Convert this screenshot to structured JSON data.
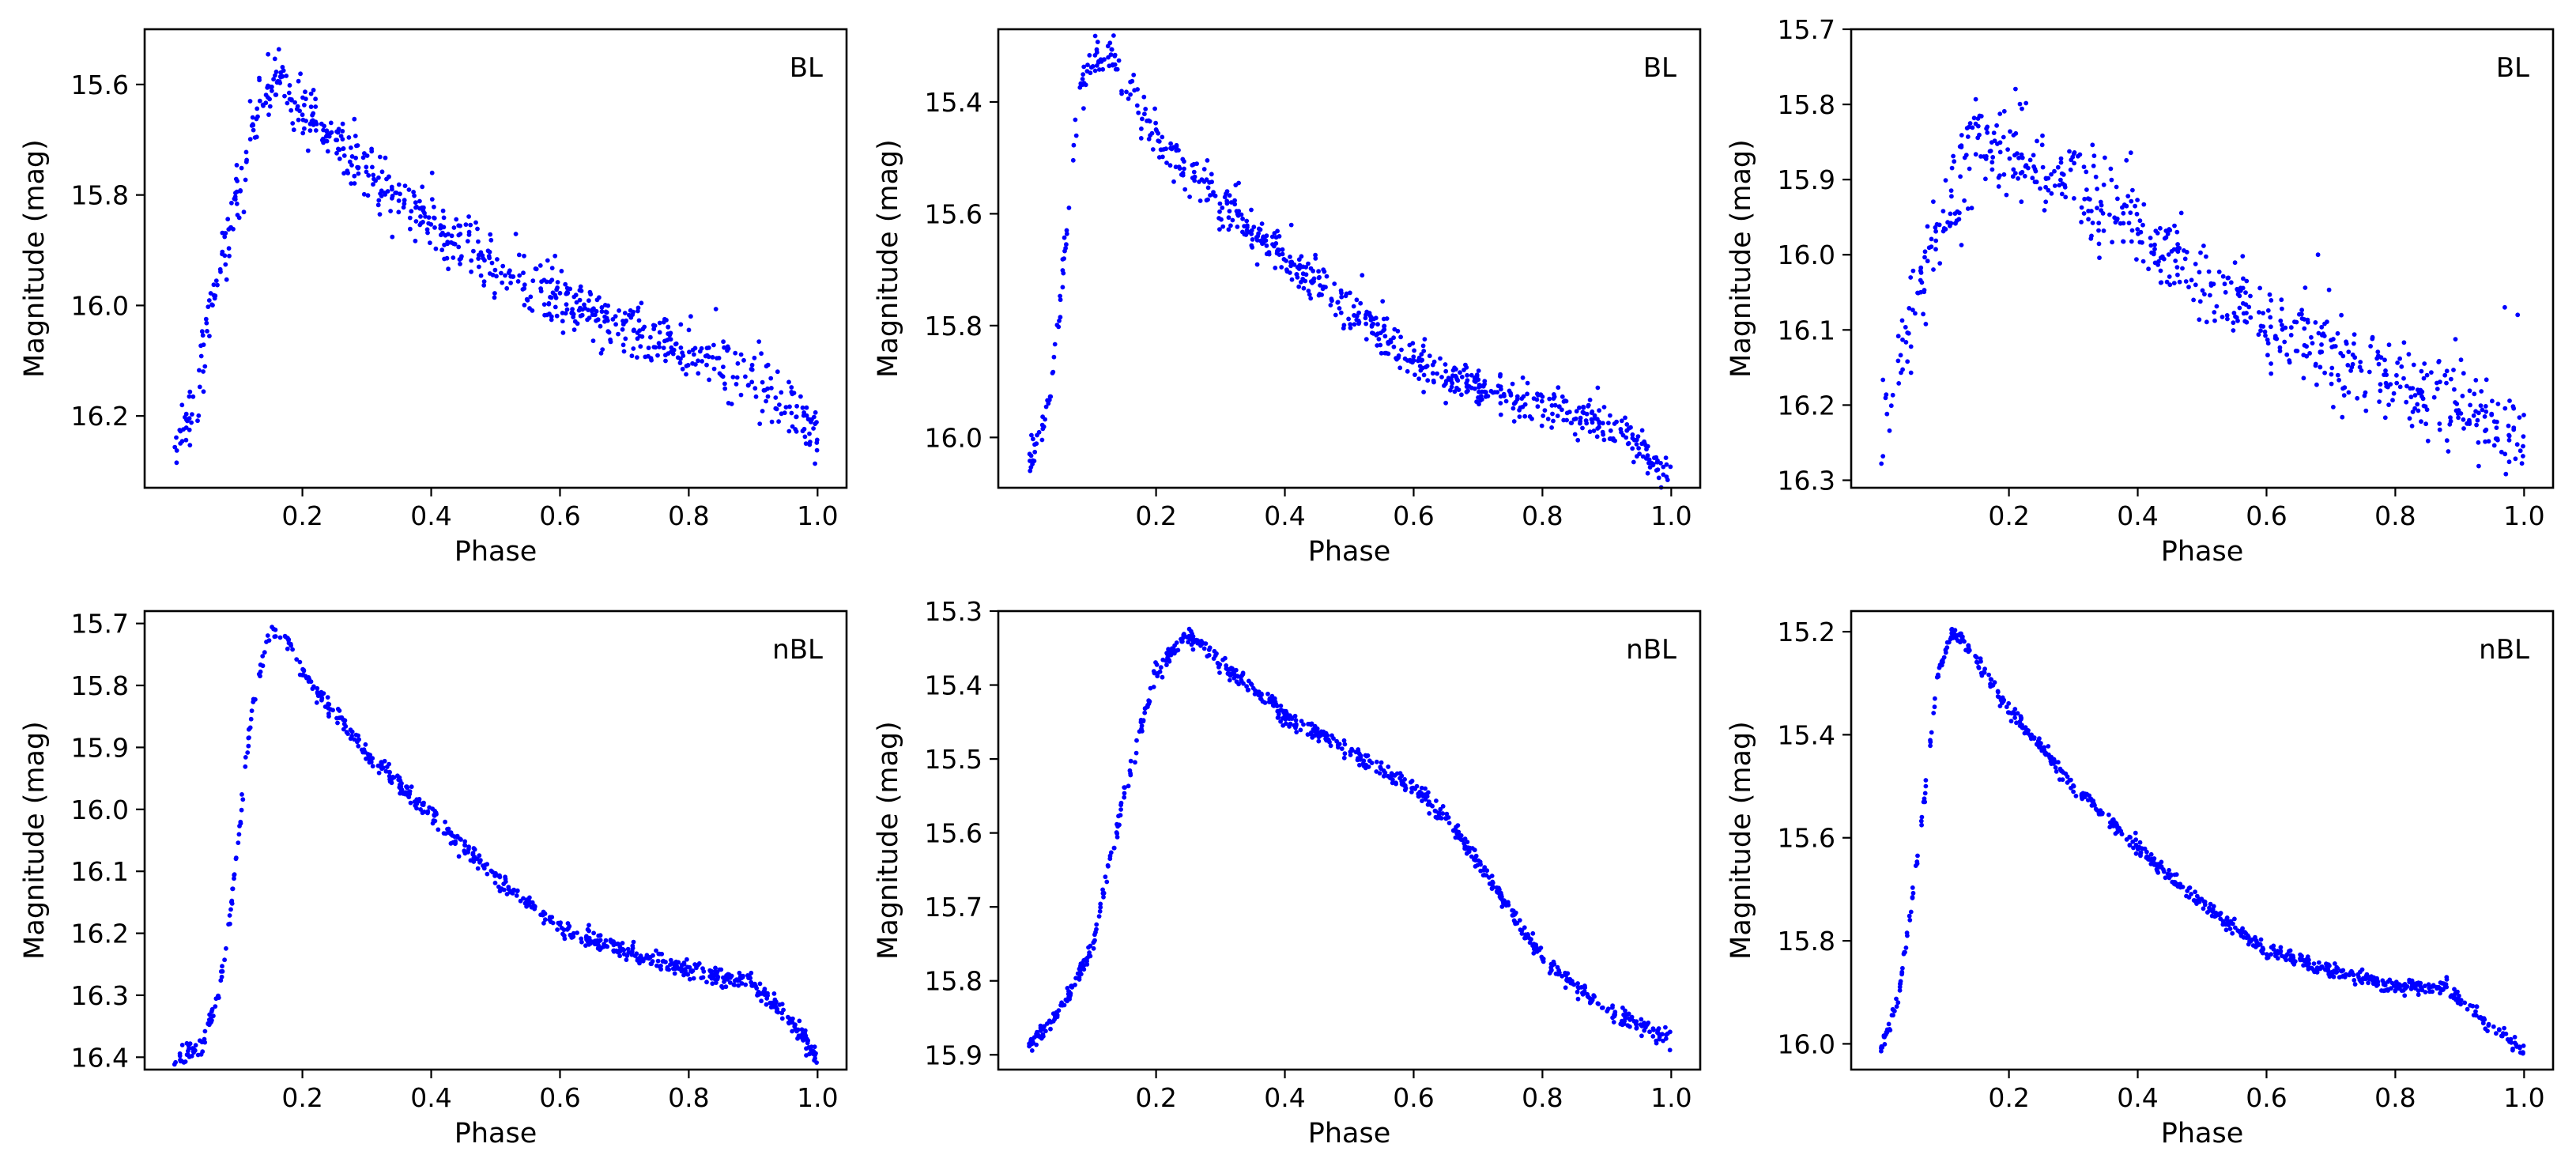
{
  "chart_data": [
    {
      "type": "scatter",
      "label": "BL",
      "xlabel": "Phase",
      "ylabel": "Magnitude (mag)",
      "xlim": [
        0,
        1
      ],
      "ylim": [
        16.33,
        15.5
      ],
      "y_inverted": true,
      "grid": false,
      "marker_color": "#0000ff",
      "xticks": [
        0.2,
        0.4,
        0.6,
        0.8,
        1.0
      ],
      "xtick_labels": [
        "0.2",
        "0.4",
        "0.6",
        "0.8",
        "1.0"
      ],
      "yticks": [
        15.6,
        15.8,
        16.0,
        16.2
      ],
      "ytick_labels": [
        "15.6",
        "15.8",
        "16.0",
        "16.2"
      ],
      "curve": [
        [
          0.0,
          16.27
        ],
        [
          0.03,
          16.2
        ],
        [
          0.06,
          16.0
        ],
        [
          0.09,
          15.85
        ],
        [
          0.12,
          15.68
        ],
        [
          0.16,
          15.58
        ],
        [
          0.2,
          15.64
        ],
        [
          0.3,
          15.76
        ],
        [
          0.4,
          15.85
        ],
        [
          0.5,
          15.93
        ],
        [
          0.6,
          15.99
        ],
        [
          0.7,
          16.04
        ],
        [
          0.8,
          16.08
        ],
        [
          0.9,
          16.13
        ],
        [
          1.0,
          16.24
        ]
      ],
      "n_points": 720,
      "scatter_sigma": 0.027,
      "outliers": []
    },
    {
      "type": "scatter",
      "label": "BL",
      "xlabel": "Phase",
      "ylabel": "Magnitude (mag)",
      "xlim": [
        0,
        1
      ],
      "ylim": [
        16.09,
        15.27
      ],
      "y_inverted": true,
      "grid": false,
      "marker_color": "#0000ff",
      "xticks": [
        0.2,
        0.4,
        0.6,
        0.8,
        1.0
      ],
      "xtick_labels": [
        "0.2",
        "0.4",
        "0.6",
        "0.8",
        "1.0"
      ],
      "yticks": [
        15.4,
        15.6,
        15.8,
        16.0
      ],
      "ytick_labels": [
        "15.4",
        "15.6",
        "15.8",
        "16.0"
      ],
      "curve": [
        [
          0.0,
          16.05
        ],
        [
          0.02,
          16.0
        ],
        [
          0.04,
          15.9
        ],
        [
          0.06,
          15.65
        ],
        [
          0.08,
          15.4
        ],
        [
          0.1,
          15.32
        ],
        [
          0.13,
          15.32
        ],
        [
          0.2,
          15.46
        ],
        [
          0.3,
          15.58
        ],
        [
          0.4,
          15.68
        ],
        [
          0.5,
          15.77
        ],
        [
          0.6,
          15.86
        ],
        [
          0.7,
          15.91
        ],
        [
          0.8,
          15.94
        ],
        [
          0.9,
          15.98
        ],
        [
          1.0,
          16.06
        ]
      ],
      "n_points": 700,
      "scatter_sigma": 0.02,
      "outliers": [
        [
          0.41,
          15.62
        ],
        [
          0.52,
          15.71
        ]
      ]
    },
    {
      "type": "scatter",
      "label": "BL",
      "xlabel": "Phase",
      "ylabel": "Magnitude (mag)",
      "xlim": [
        0,
        1
      ],
      "ylim": [
        16.31,
        15.7
      ],
      "y_inverted": true,
      "grid": false,
      "marker_color": "#0000ff",
      "xticks": [
        0.2,
        0.4,
        0.6,
        0.8,
        1.0
      ],
      "xtick_labels": [
        "0.2",
        "0.4",
        "0.6",
        "0.8",
        "1.0"
      ],
      "yticks": [
        15.7,
        15.8,
        15.9,
        16.0,
        16.1,
        16.2,
        16.3
      ],
      "ytick_labels": [
        "15.7",
        "15.8",
        "15.9",
        "16.0",
        "16.1",
        "16.2",
        "16.3"
      ],
      "curve": [
        [
          0.0,
          16.26
        ],
        [
          0.05,
          16.08
        ],
        [
          0.1,
          15.95
        ],
        [
          0.15,
          15.85
        ],
        [
          0.2,
          15.86
        ],
        [
          0.3,
          15.91
        ],
        [
          0.4,
          15.97
        ],
        [
          0.5,
          16.03
        ],
        [
          0.6,
          16.09
        ],
        [
          0.7,
          16.13
        ],
        [
          0.8,
          16.17
        ],
        [
          0.9,
          16.2
        ],
        [
          1.0,
          16.25
        ]
      ],
      "n_points": 660,
      "scatter_sigma": 0.03,
      "outliers": [
        [
          0.68,
          16.0
        ],
        [
          0.97,
          16.07
        ],
        [
          0.99,
          16.08
        ]
      ]
    },
    {
      "type": "scatter",
      "label": "nBL",
      "xlabel": "Phase",
      "ylabel": "Magnitude (mag)",
      "xlim": [
        0,
        1
      ],
      "ylim": [
        16.42,
        15.68
      ],
      "y_inverted": true,
      "grid": false,
      "marker_color": "#0000ff",
      "xticks": [
        0.2,
        0.4,
        0.6,
        0.8,
        1.0
      ],
      "xtick_labels": [
        "0.2",
        "0.4",
        "0.6",
        "0.8",
        "1.0"
      ],
      "yticks": [
        15.7,
        15.8,
        15.9,
        16.0,
        16.1,
        16.2,
        16.3,
        16.4
      ],
      "ytick_labels": [
        "15.7",
        "15.8",
        "15.9",
        "16.0",
        "16.1",
        "16.2",
        "16.3",
        "16.4"
      ],
      "curve": [
        [
          0.0,
          16.4
        ],
        [
          0.04,
          16.39
        ],
        [
          0.07,
          16.3
        ],
        [
          0.09,
          16.15
        ],
        [
          0.12,
          15.85
        ],
        [
          0.15,
          15.71
        ],
        [
          0.17,
          15.71
        ],
        [
          0.2,
          15.78
        ],
        [
          0.3,
          15.91
        ],
        [
          0.4,
          16.01
        ],
        [
          0.5,
          16.11
        ],
        [
          0.6,
          16.19
        ],
        [
          0.7,
          16.23
        ],
        [
          0.8,
          16.26
        ],
        [
          0.9,
          16.28
        ],
        [
          0.95,
          16.33
        ],
        [
          1.0,
          16.4
        ]
      ],
      "n_points": 720,
      "scatter_sigma": 0.007,
      "outliers": []
    },
    {
      "type": "scatter",
      "label": "nBL",
      "xlabel": "Phase",
      "ylabel": "Magnitude (mag)",
      "xlim": [
        0,
        1
      ],
      "ylim": [
        15.92,
        15.3
      ],
      "y_inverted": true,
      "grid": false,
      "marker_color": "#0000ff",
      "xticks": [
        0.2,
        0.4,
        0.6,
        0.8,
        1.0
      ],
      "xtick_labels": [
        "0.2",
        "0.4",
        "0.6",
        "0.8",
        "1.0"
      ],
      "yticks": [
        15.3,
        15.4,
        15.5,
        15.6,
        15.7,
        15.8,
        15.9
      ],
      "ytick_labels": [
        "15.3",
        "15.4",
        "15.5",
        "15.6",
        "15.7",
        "15.8",
        "15.9"
      ],
      "curve": [
        [
          0.0,
          15.89
        ],
        [
          0.05,
          15.84
        ],
        [
          0.1,
          15.76
        ],
        [
          0.15,
          15.55
        ],
        [
          0.2,
          15.38
        ],
        [
          0.25,
          15.33
        ],
        [
          0.3,
          15.37
        ],
        [
          0.4,
          15.44
        ],
        [
          0.5,
          15.49
        ],
        [
          0.6,
          15.54
        ],
        [
          0.65,
          15.58
        ],
        [
          0.7,
          15.64
        ],
        [
          0.8,
          15.77
        ],
        [
          0.9,
          15.84
        ],
        [
          1.0,
          15.88
        ]
      ],
      "n_points": 720,
      "scatter_sigma": 0.006,
      "outliers": []
    },
    {
      "type": "scatter",
      "label": "nBL",
      "xlabel": "Phase",
      "ylabel": "Magnitude (mag)",
      "xlim": [
        0,
        1
      ],
      "ylim": [
        16.05,
        15.16
      ],
      "y_inverted": true,
      "grid": false,
      "marker_color": "#0000ff",
      "xticks": [
        0.2,
        0.4,
        0.6,
        0.8,
        1.0
      ],
      "xtick_labels": [
        "0.2",
        "0.4",
        "0.6",
        "0.8",
        "1.0"
      ],
      "yticks": [
        15.2,
        15.4,
        15.6,
        15.8,
        16.0
      ],
      "ytick_labels": [
        "15.2",
        "15.4",
        "15.6",
        "15.8",
        "16.0"
      ],
      "curve": [
        [
          0.0,
          16.02
        ],
        [
          0.03,
          15.9
        ],
        [
          0.06,
          15.62
        ],
        [
          0.09,
          15.28
        ],
        [
          0.11,
          15.2
        ],
        [
          0.13,
          15.22
        ],
        [
          0.2,
          15.35
        ],
        [
          0.3,
          15.5
        ],
        [
          0.4,
          15.62
        ],
        [
          0.5,
          15.73
        ],
        [
          0.6,
          15.82
        ],
        [
          0.7,
          15.86
        ],
        [
          0.8,
          15.89
        ],
        [
          0.88,
          15.89
        ],
        [
          0.95,
          15.97
        ],
        [
          1.0,
          16.01
        ]
      ],
      "n_points": 720,
      "scatter_sigma": 0.007,
      "outliers": []
    }
  ]
}
